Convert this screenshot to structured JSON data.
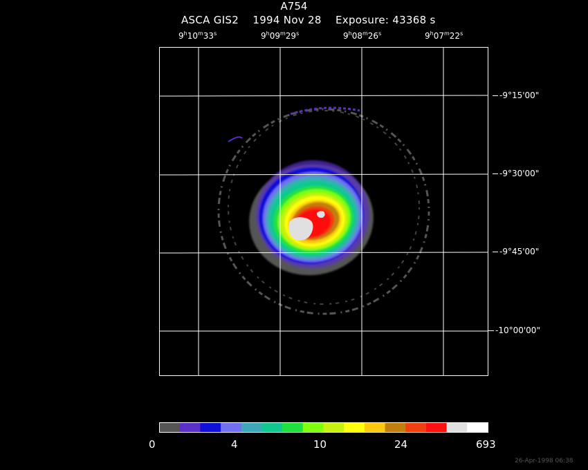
{
  "title": {
    "object": "A754",
    "subtitle": "ASCA GIS2    1994 Nov 28    Exposure: 43368 s"
  },
  "ra_axis": [
    {
      "h": "9",
      "m": "10",
      "s": "33"
    },
    {
      "h": "9",
      "m": "09",
      "s": "29"
    },
    {
      "h": "9",
      "m": "08",
      "s": "26"
    },
    {
      "h": "9",
      "m": "07",
      "s": "22"
    }
  ],
  "dec_axis": [
    "-9°15'00\"",
    "-9°30'00\"",
    "-9°45'00\"",
    "-10°00'00\""
  ],
  "colorbar": {
    "colors": [
      "#555555",
      "#5a30c8",
      "#1010d8",
      "#7070f0",
      "#3ca8b8",
      "#10c890",
      "#20e040",
      "#80ff10",
      "#c8f010",
      "#ffff10",
      "#ffc810",
      "#c08010",
      "#f04010",
      "#ff1010",
      "#e0e0e0",
      "#ffffff"
    ],
    "labels": [
      "0",
      "4",
      "10",
      "24",
      "693"
    ]
  },
  "footer": "26-Apr-1998 06:38"
}
